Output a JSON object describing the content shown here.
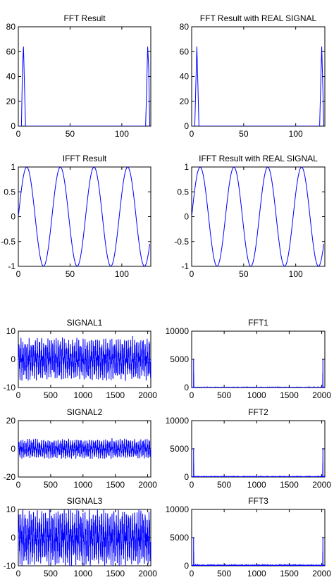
{
  "figure": {
    "background": "#ffffff",
    "line_color": "#0000ff"
  },
  "chart_data": [
    {
      "id": "fft-result",
      "type": "line",
      "title": "FFT Result",
      "xlabel": "",
      "ylabel": "",
      "xlim": [
        0,
        128
      ],
      "ylim": [
        0,
        80
      ],
      "xticks": [
        0,
        50,
        100
      ],
      "yticks": [
        0,
        20,
        40,
        60,
        80
      ],
      "signal": {
        "kind": "spikes",
        "n": 128,
        "values": [
          [
            4,
            47
          ],
          [
            5,
            64
          ],
          [
            6,
            31
          ],
          [
            124,
            31
          ],
          [
            125,
            64
          ],
          [
            126,
            47
          ]
        ]
      }
    },
    {
      "id": "fft-real",
      "type": "line",
      "title": "FFT Result with REAL SIGNAL",
      "xlabel": "",
      "ylabel": "",
      "xlim": [
        0,
        128
      ],
      "ylim": [
        0,
        80
      ],
      "xticks": [
        0,
        50,
        100
      ],
      "yticks": [
        0,
        20,
        40,
        60,
        80
      ],
      "signal": {
        "kind": "spikes",
        "n": 128,
        "values": [
          [
            4,
            33
          ],
          [
            5,
            64
          ],
          [
            6,
            33
          ],
          [
            124,
            33
          ],
          [
            125,
            64
          ],
          [
            126,
            33
          ]
        ]
      }
    },
    {
      "id": "ifft-result",
      "type": "line",
      "title": "IFFT Result",
      "xlabel": "",
      "ylabel": "",
      "xlim": [
        0,
        128
      ],
      "ylim": [
        -1,
        1
      ],
      "xticks": [
        0,
        50,
        100
      ],
      "yticks": [
        -1,
        -0.5,
        0,
        0.5,
        1
      ],
      "signal": {
        "kind": "sine",
        "n": 128,
        "period": 32.5,
        "amplitude": 1
      }
    },
    {
      "id": "ifft-real",
      "type": "line",
      "title": "IFFT Result with REAL SIGNAL",
      "xlabel": "",
      "ylabel": "",
      "xlim": [
        0,
        128
      ],
      "ylim": [
        -1,
        1
      ],
      "xticks": [
        0,
        50,
        100
      ],
      "yticks": [
        -1,
        -0.5,
        0,
        0.5,
        1
      ],
      "signal": {
        "kind": "sine",
        "n": 128,
        "period": 32.5,
        "amplitude": 1
      }
    },
    {
      "id": "signal1",
      "type": "line",
      "title": "SIGNAL1",
      "xlabel": "",
      "ylabel": "",
      "xlim": [
        0,
        2048
      ],
      "ylim": [
        -10,
        10
      ],
      "xticks": [
        0,
        500,
        1000,
        1500,
        2000
      ],
      "yticks": [
        -10,
        0,
        10
      ],
      "signal": {
        "kind": "noisy",
        "n": 2048,
        "amplitude_range": [
          -7.5,
          8.5
        ],
        "seed": 11
      }
    },
    {
      "id": "fft1",
      "type": "line",
      "title": "FFT1",
      "xlabel": "",
      "ylabel": "",
      "xlim": [
        0,
        2048
      ],
      "ylim": [
        0,
        10000
      ],
      "xticks": [
        0,
        500,
        1000,
        1500,
        2000
      ],
      "yticks": [
        0,
        5000,
        10000
      ],
      "signal": {
        "kind": "spikes",
        "n": 2048,
        "values": [
          [
            30,
            5100
          ],
          [
            32,
            2500
          ],
          [
            2016,
            2500
          ],
          [
            2018,
            5100
          ]
        ],
        "floor": 40
      }
    },
    {
      "id": "signal2",
      "type": "line",
      "title": "SIGNAL2",
      "xlabel": "",
      "ylabel": "",
      "xlim": [
        0,
        2048
      ],
      "ylim": [
        -20,
        20
      ],
      "xticks": [
        0,
        500,
        1000,
        1500,
        2000
      ],
      "yticks": [
        -20,
        0,
        20
      ],
      "signal": {
        "kind": "noisy",
        "n": 2048,
        "amplitude_range": [
          -7,
          10
        ],
        "seed": 23
      }
    },
    {
      "id": "fft2",
      "type": "line",
      "title": "FFT2",
      "xlabel": "",
      "ylabel": "",
      "xlim": [
        0,
        2048
      ],
      "ylim": [
        0,
        10000
      ],
      "xticks": [
        0,
        500,
        1000,
        1500,
        2000
      ],
      "yticks": [
        0,
        5000,
        10000
      ],
      "signal": {
        "kind": "spikes",
        "n": 2048,
        "values": [
          [
            30,
            5100
          ],
          [
            32,
            2500
          ],
          [
            2016,
            2500
          ],
          [
            2018,
            5100
          ]
        ],
        "floor": 60
      }
    },
    {
      "id": "signal3",
      "type": "line",
      "title": "SIGNAL3",
      "xlabel": "",
      "ylabel": "",
      "xlim": [
        0,
        2048
      ],
      "ylim": [
        -10,
        10
      ],
      "xticks": [
        0,
        500,
        1000,
        1500,
        2000
      ],
      "yticks": [
        -10,
        0,
        10
      ],
      "signal": {
        "kind": "noisy",
        "n": 2048,
        "amplitude_range": [
          -10,
          10
        ],
        "seed": 37
      }
    },
    {
      "id": "fft3",
      "type": "line",
      "title": "FFT3",
      "xlabel": "",
      "ylabel": "",
      "xlim": [
        0,
        2048
      ],
      "ylim": [
        0,
        10000
      ],
      "xticks": [
        0,
        500,
        1000,
        1500,
        2000
      ],
      "yticks": [
        0,
        5000,
        10000
      ],
      "signal": {
        "kind": "spikes",
        "n": 2048,
        "values": [
          [
            30,
            5100
          ],
          [
            32,
            2500
          ],
          [
            2016,
            2500
          ],
          [
            2018,
            5100
          ]
        ],
        "floor": 120
      }
    }
  ]
}
